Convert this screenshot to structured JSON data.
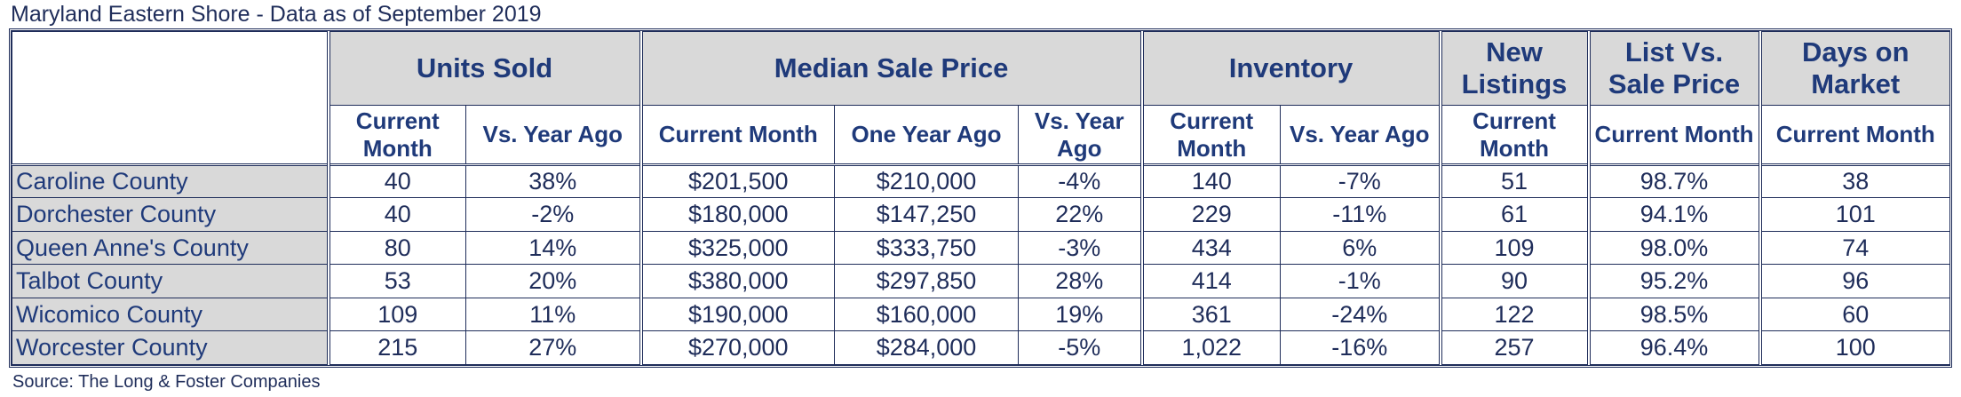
{
  "title": "Maryland Eastern Shore - Data as of September 2019",
  "source": "Source: The Long & Foster Companies",
  "groups": [
    {
      "label": "Units Sold"
    },
    {
      "label": "Median Sale Price"
    },
    {
      "label": "Inventory"
    },
    {
      "label": "New Listings"
    },
    {
      "label": "List Vs. Sale Price"
    },
    {
      "label": "Days on Market"
    }
  ],
  "subheaders": [
    "Current Month",
    "Vs. Year Ago",
    "Current Month",
    "One Year Ago",
    "Vs. Year Ago",
    "Current Month",
    "Vs. Year Ago",
    "Current Month",
    "Current Month",
    "Current Month"
  ],
  "rows": [
    {
      "county": "Caroline County",
      "values": [
        "40",
        "38%",
        "$201,500",
        "$210,000",
        "-4%",
        "140",
        "-7%",
        "51",
        "98.7%",
        "38"
      ]
    },
    {
      "county": "Dorchester County",
      "values": [
        "40",
        "-2%",
        "$180,000",
        "$147,250",
        "22%",
        "229",
        "-11%",
        "61",
        "94.1%",
        "101"
      ]
    },
    {
      "county": "Queen Anne's County",
      "values": [
        "80",
        "14%",
        "$325,000",
        "$333,750",
        "-3%",
        "434",
        "6%",
        "109",
        "98.0%",
        "74"
      ]
    },
    {
      "county": "Talbot County",
      "values": [
        "53",
        "20%",
        "$380,000",
        "$297,850",
        "28%",
        "414",
        "-1%",
        "90",
        "95.2%",
        "96"
      ]
    },
    {
      "county": "Wicomico County",
      "values": [
        "109",
        "11%",
        "$190,000",
        "$160,000",
        "19%",
        "361",
        "-24%",
        "122",
        "98.5%",
        "60"
      ]
    },
    {
      "county": "Worcester County",
      "values": [
        "215",
        "27%",
        "$270,000",
        "$284,000",
        "-5%",
        "1,022",
        "-16%",
        "257",
        "96.4%",
        "100"
      ]
    }
  ]
}
